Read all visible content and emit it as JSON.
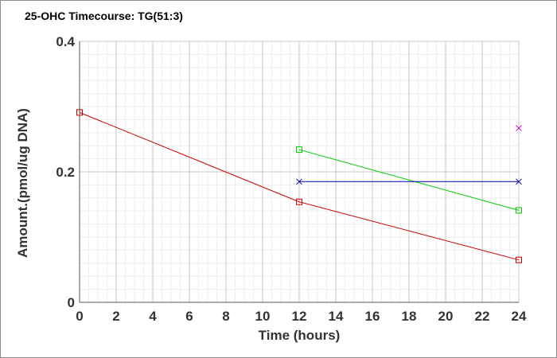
{
  "chart_data": {
    "type": "line",
    "title": "25-OHC Timecourse: TG(51:3)",
    "xlabel": "Time (hours)",
    "ylabel": "Amount.(pmol/ug DNA)",
    "xlim": [
      0,
      24
    ],
    "ylim": [
      0,
      0.4
    ],
    "x_ticks": [
      0,
      2,
      4,
      6,
      8,
      10,
      12,
      14,
      16,
      18,
      20,
      22,
      24
    ],
    "y_ticks": [
      0,
      0.2,
      0.4
    ],
    "y_tick_labels": [
      "0",
      "0.2",
      "0.4"
    ],
    "grid": true,
    "series": [
      {
        "color": "#cc0000",
        "marker": "square",
        "x": [
          0,
          12,
          24
        ],
        "y": [
          0.291,
          0.154,
          0.065
        ]
      },
      {
        "color": "#00cc00",
        "marker": "square",
        "x": [
          12,
          24
        ],
        "y": [
          0.234,
          0.141
        ]
      },
      {
        "color": "#0000aa",
        "marker": "x",
        "x": [
          12,
          24
        ],
        "y": [
          0.185,
          0.185
        ]
      },
      {
        "color": "#cc00cc",
        "marker": "x",
        "x": [
          24
        ],
        "y": [
          0.267
        ]
      }
    ]
  }
}
